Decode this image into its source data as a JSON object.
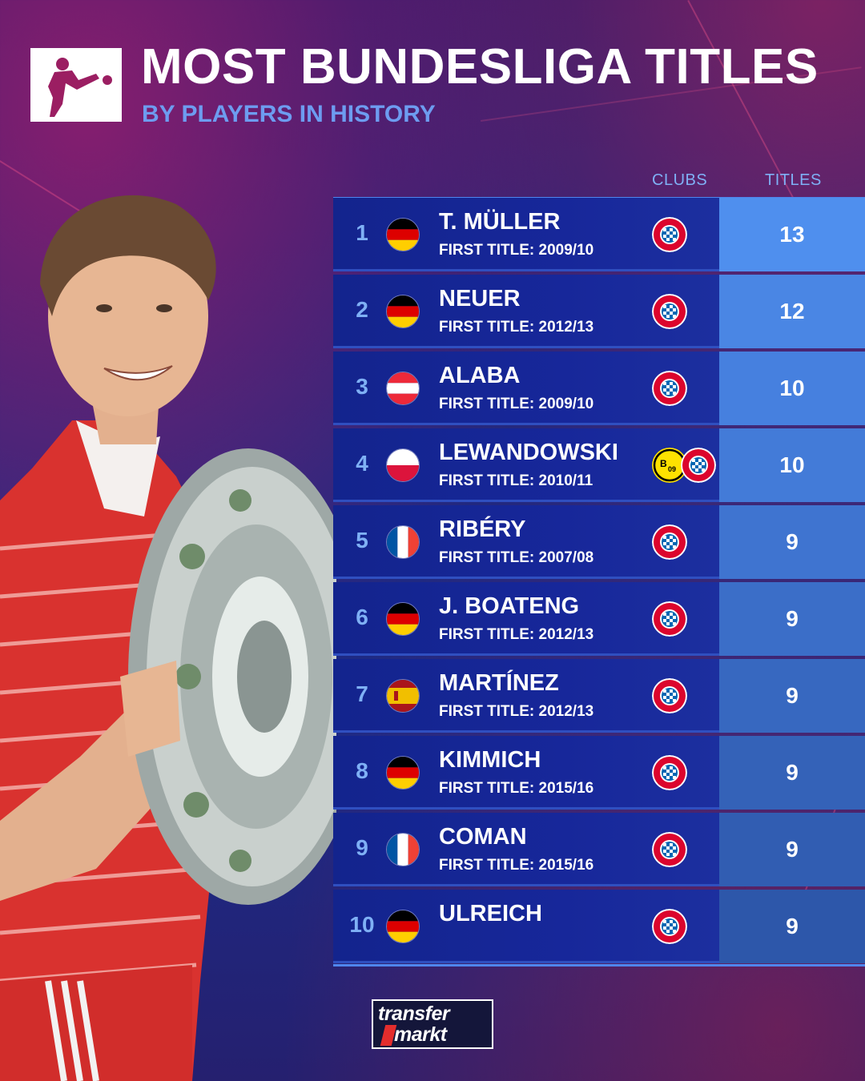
{
  "header": {
    "title": "MOST BUNDESLIGA TITLES",
    "subtitle": "BY PLAYERS IN HISTORY"
  },
  "columns": {
    "clubs": "CLUBS",
    "titles": "TITLES"
  },
  "rows": [
    {
      "rank": "1",
      "name": "T. MÜLLER",
      "first": "FIRST TITLE: 2009/10",
      "titles": "13",
      "flag": "germany",
      "clubs": [
        "bayern"
      ]
    },
    {
      "rank": "2",
      "name": "NEUER",
      "first": "FIRST TITLE: 2012/13",
      "titles": "12",
      "flag": "germany",
      "clubs": [
        "bayern"
      ]
    },
    {
      "rank": "3",
      "name": "ALABA",
      "first": "FIRST TITLE: 2009/10",
      "titles": "10",
      "flag": "austria",
      "clubs": [
        "bayern"
      ]
    },
    {
      "rank": "4",
      "name": "LEWANDOWSKI",
      "first": "FIRST TITLE: 2010/11",
      "titles": "10",
      "flag": "poland",
      "clubs": [
        "dortmund",
        "bayern"
      ]
    },
    {
      "rank": "5",
      "name": "RIBÉRY",
      "first": "FIRST TITLE: 2007/08",
      "titles": "9",
      "flag": "france",
      "clubs": [
        "bayern"
      ]
    },
    {
      "rank": "6",
      "name": "J. BOATENG",
      "first": "FIRST TITLE: 2012/13",
      "titles": "9",
      "flag": "germany",
      "clubs": [
        "bayern"
      ]
    },
    {
      "rank": "7",
      "name": "MARTÍNEZ",
      "first": "FIRST TITLE: 2012/13",
      "titles": "9",
      "flag": "spain",
      "clubs": [
        "bayern"
      ]
    },
    {
      "rank": "8",
      "name": "KIMMICH",
      "first": "FIRST TITLE: 2015/16",
      "titles": "9",
      "flag": "germany",
      "clubs": [
        "bayern"
      ]
    },
    {
      "rank": "9",
      "name": "COMAN",
      "first": "FIRST TITLE: 2015/16",
      "titles": "9",
      "flag": "france",
      "clubs": [
        "bayern"
      ]
    },
    {
      "rank": "10",
      "name": "ULREICH",
      "first": "",
      "titles": "9",
      "flag": "germany",
      "clubs": [
        "bayern"
      ]
    }
  ],
  "title_cell_colors": [
    "#4f8fee",
    "#4a86e4",
    "#4680df",
    "#437bd8",
    "#3f74d0",
    "#3b6ec8",
    "#3768c0",
    "#3462b8",
    "#315db2",
    "#2d57aa"
  ],
  "footer": {
    "logo_line1": "transfer",
    "logo_line2": "markt"
  },
  "icons": {
    "header_logo": "bundesliga-logo-icon",
    "player": "player-with-trophy-image"
  }
}
